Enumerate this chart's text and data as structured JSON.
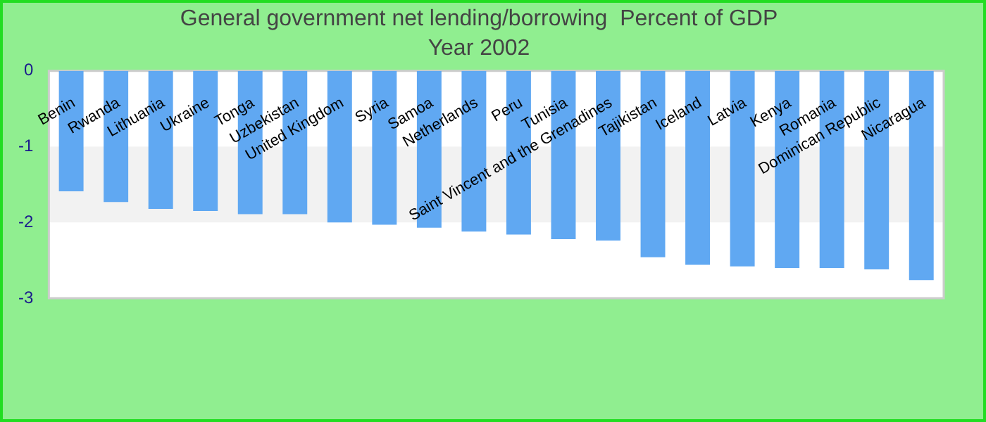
{
  "chart_data": {
    "type": "bar",
    "title": "General government net lending/borrowing  Percent of GDP",
    "subtitle": "Year 2002",
    "categories": [
      "Benin",
      "Rwanda",
      "Lithuania",
      "Ukraine",
      "Tonga",
      "Uzbekistan",
      "United Kingdom",
      "Syria",
      "Samoa",
      "Netherlands",
      "Peru",
      "Tunisia",
      "Saint Vincent and the Grenadines",
      "Tajikistan",
      "Iceland",
      "Latvia",
      "Kenya",
      "Romania",
      "Dominican Republic",
      "Nicaragua"
    ],
    "values": [
      -1.59,
      -1.73,
      -1.82,
      -1.85,
      -1.89,
      -1.89,
      -2.0,
      -2.03,
      -2.07,
      -2.12,
      -2.16,
      -2.22,
      -2.24,
      -2.46,
      -2.56,
      -2.58,
      -2.6,
      -2.6,
      -2.62,
      -2.76
    ],
    "color": "#60a8f2",
    "ylim": [
      -3,
      0
    ],
    "yticks": [
      0,
      -1,
      -2,
      -3
    ],
    "bands": [
      {
        "axis": "y",
        "from": -2,
        "to": -1,
        "color": "#f2f2f2"
      }
    ],
    "legend": false
  }
}
